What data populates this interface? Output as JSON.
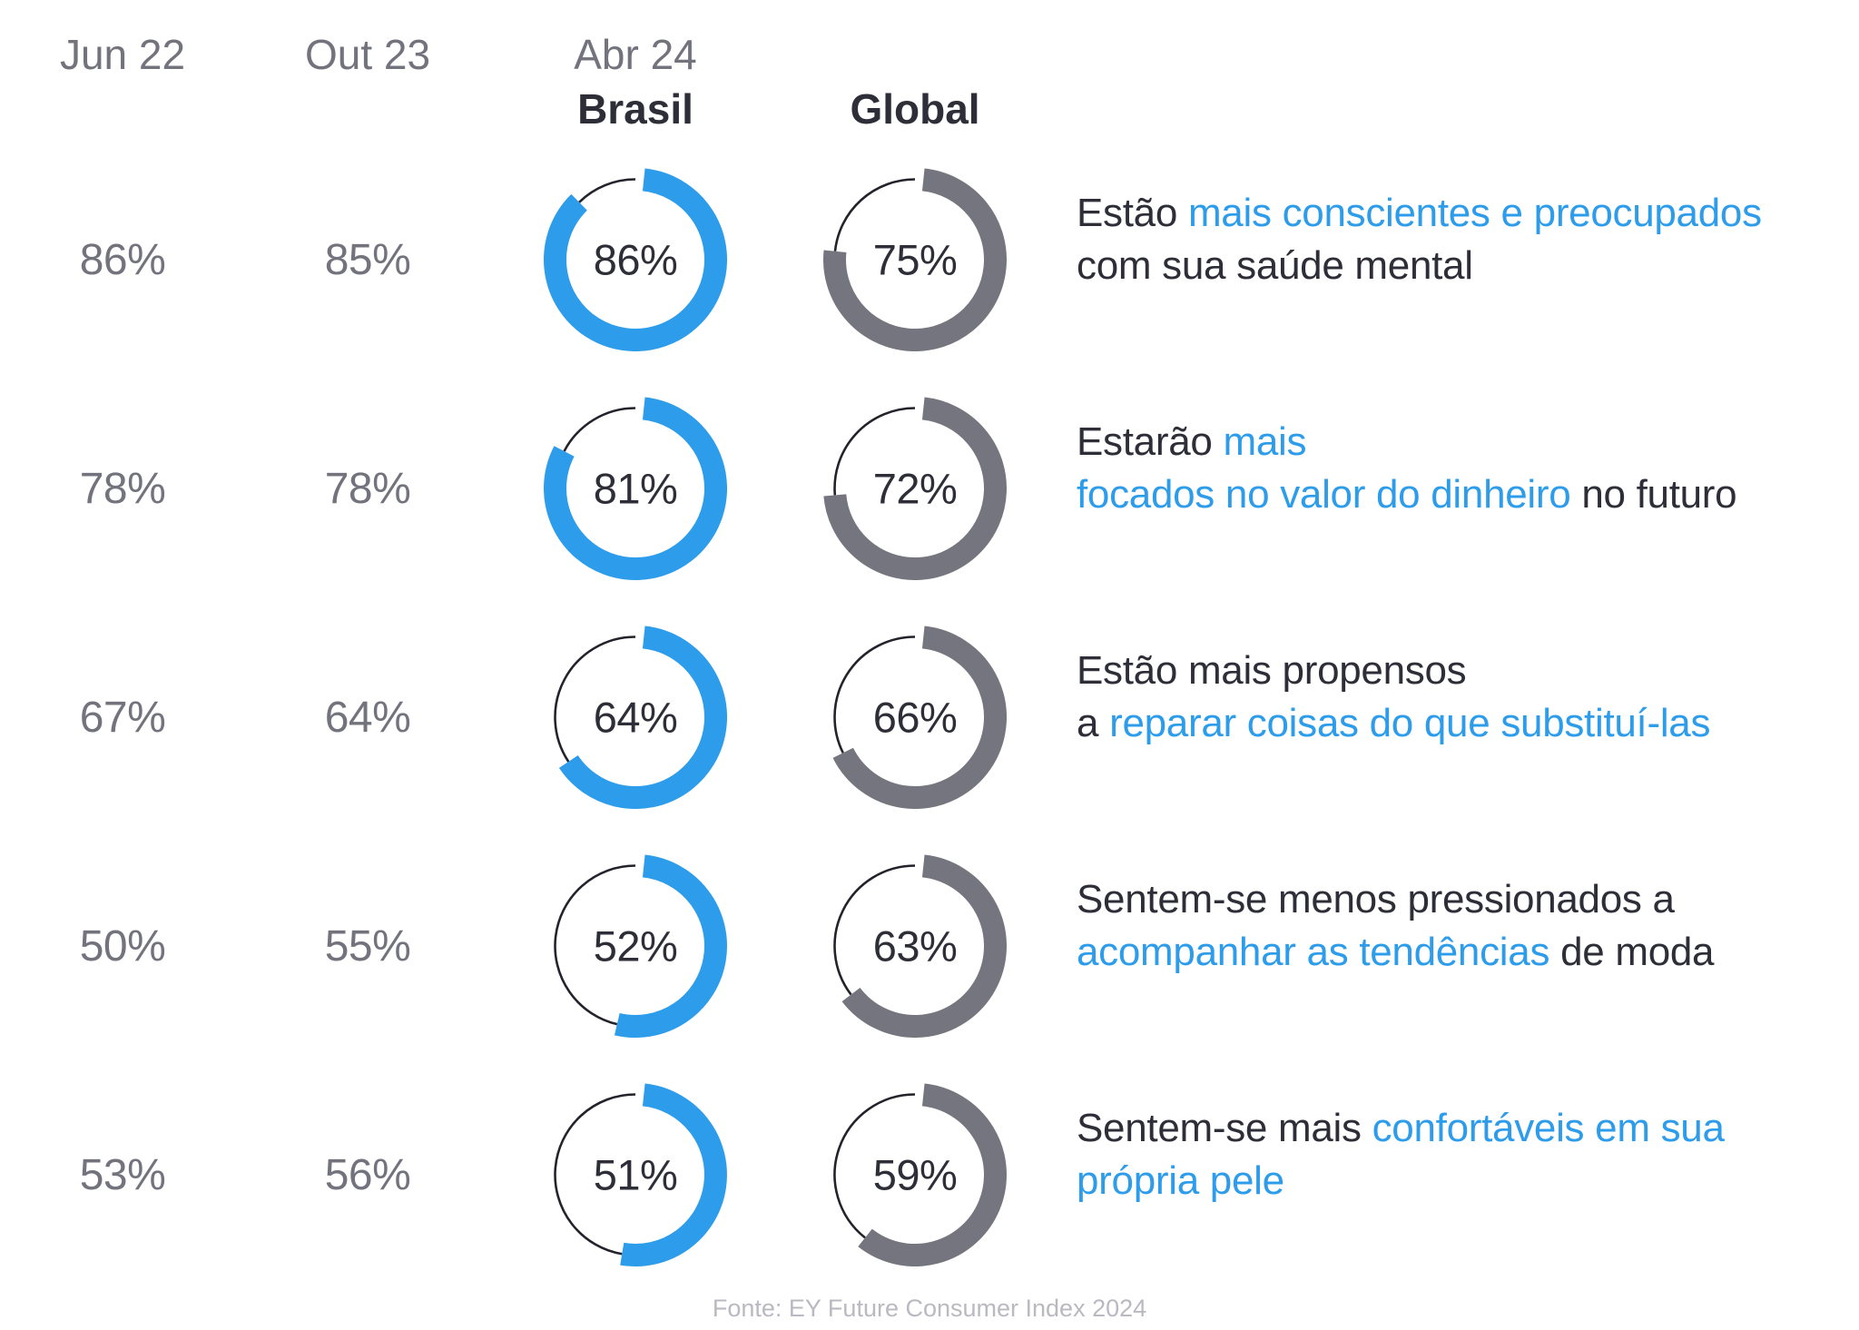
{
  "header": {
    "jun22": "Jun 22",
    "out23": "Out 23",
    "abr24": "Abr 24",
    "brasil": "Brasil",
    "global": "Global"
  },
  "footer": {
    "source": "Fonte: EY Future Consumer Index 2024"
  },
  "colors": {
    "brand_blue": "#2d9cea",
    "neutral_gray": "#75757f",
    "dark_text": "#2e2e38",
    "muted_text": "#73737e",
    "remainder_line": "#23232c",
    "footer_text": "#b9b9c2",
    "highlight_text": "#2d9cea",
    "background": "#ffffff"
  },
  "chart_data": {
    "type": "donut-table",
    "columns": [
      "Jun 22",
      "Out 23",
      "Abr 24 Brasil",
      "Abr 24 Global"
    ],
    "donut_series": [
      {
        "name": "Brasil",
        "color": "#2d9cea"
      },
      {
        "name": "Global",
        "color": "#75757f"
      }
    ],
    "rows": [
      {
        "jun22": "86%",
        "out23": "85%",
        "brasil_pct": 86,
        "global_pct": 75,
        "statement": [
          {
            "text": "Estão ",
            "highlight": false
          },
          {
            "text": "mais conscientes e preocupados",
            "highlight": true
          },
          {
            "text": "\ncom sua saúde mental",
            "highlight": false
          }
        ]
      },
      {
        "jun22": "78%",
        "out23": "78%",
        "brasil_pct": 81,
        "global_pct": 72,
        "statement": [
          {
            "text": "Estarão ",
            "highlight": false
          },
          {
            "text": "mais\nfocados no valor do dinheiro",
            "highlight": true
          },
          {
            "text": " no futuro",
            "highlight": false
          }
        ]
      },
      {
        "jun22": "67%",
        "out23": "64%",
        "brasil_pct": 64,
        "global_pct": 66,
        "statement": [
          {
            "text": "Estão mais propensos\na ",
            "highlight": false
          },
          {
            "text": "reparar coisas do que substituí-las",
            "highlight": true
          }
        ]
      },
      {
        "jun22": "50%",
        "out23": "55%",
        "brasil_pct": 52,
        "global_pct": 63,
        "statement": [
          {
            "text": "Sentem-se menos pressionados a\n",
            "highlight": false
          },
          {
            "text": "acompanhar as tendências",
            "highlight": true
          },
          {
            "text": " de moda",
            "highlight": false
          }
        ]
      },
      {
        "jun22": "53%",
        "out23": "56%",
        "brasil_pct": 51,
        "global_pct": 59,
        "statement": [
          {
            "text": "Sentem-se mais ",
            "highlight": false
          },
          {
            "text": "confortáveis em sua\nprópria pele",
            "highlight": true
          }
        ]
      }
    ]
  }
}
